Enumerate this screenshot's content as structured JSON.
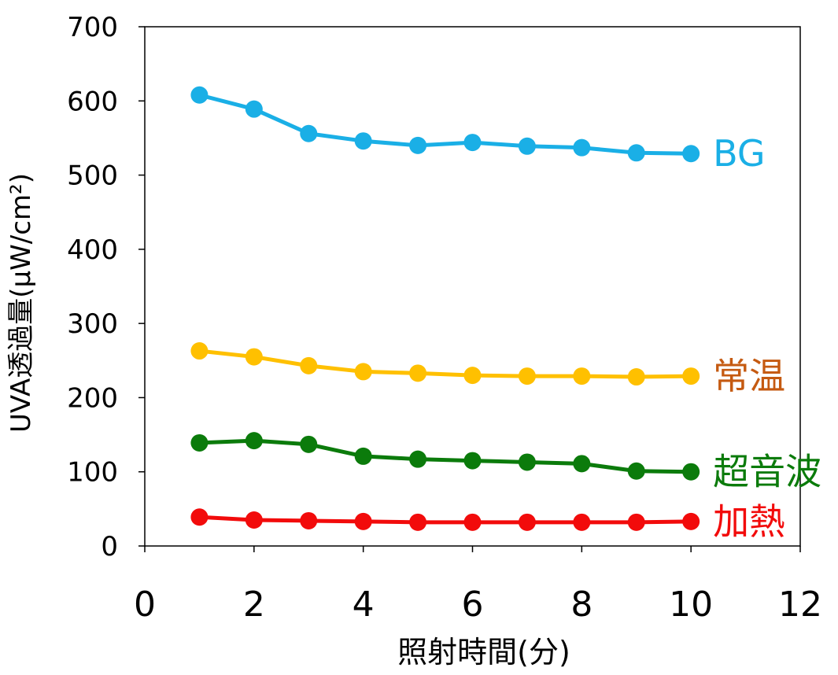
{
  "chart_data": {
    "type": "line",
    "title": "",
    "xlabel": "照射時間(分)",
    "ylabel": "UVA透過量(µW/cm²)",
    "xlim": [
      0,
      12
    ],
    "ylim": [
      0,
      700
    ],
    "x_ticks": [
      0,
      2,
      4,
      6,
      8,
      10,
      12
    ],
    "y_ticks": [
      0,
      100,
      200,
      300,
      400,
      500,
      600,
      700
    ],
    "grid": false,
    "legend": "inline labels at right end of each series",
    "x": [
      1,
      2,
      3,
      4,
      5,
      6,
      7,
      8,
      9,
      10
    ],
    "series": [
      {
        "name": "BG",
        "color": "#1AAFE6",
        "label_color": "#1AAFE6",
        "values": [
          608,
          589,
          556,
          546,
          540,
          544,
          539,
          537,
          530,
          529
        ]
      },
      {
        "name": "常温",
        "color": "#FFC000",
        "label_color": "#C55A11",
        "values": [
          263,
          255,
          243,
          235,
          233,
          230,
          229,
          229,
          228,
          229
        ]
      },
      {
        "name": "超音波",
        "color": "#0B7B0B",
        "label_color": "#0B7B0B",
        "values": [
          139,
          142,
          137,
          121,
          117,
          115,
          113,
          111,
          101,
          100
        ]
      },
      {
        "name": "加熱",
        "color": "#F20B0B",
        "label_color": "#F20B0B",
        "values": [
          39,
          35,
          34,
          33,
          32,
          32,
          32,
          32,
          32,
          33
        ]
      }
    ]
  }
}
